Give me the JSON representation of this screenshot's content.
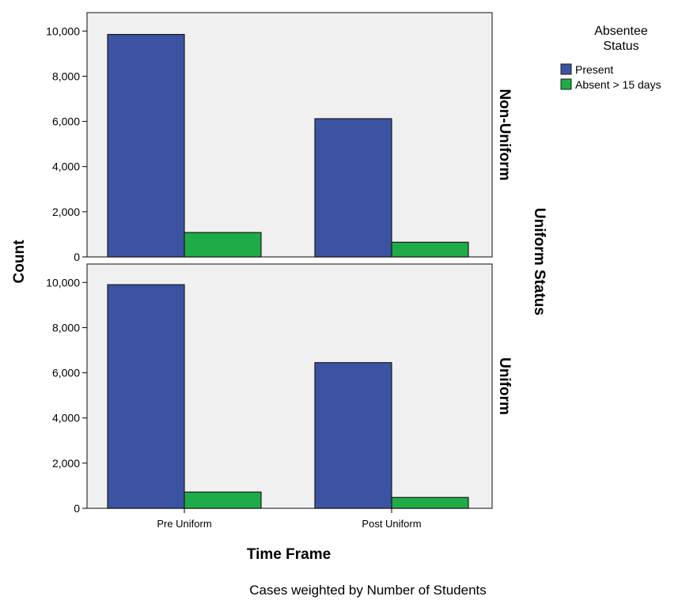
{
  "chart_data": {
    "type": "bar",
    "xlabel": "Time Frame",
    "ylabel": "Count",
    "facet_label": "Uniform Status",
    "categories": [
      "Pre Uniform",
      "Post Uniform"
    ],
    "ylim": [
      0,
      10500
    ],
    "yticks": [
      "0",
      "2,000",
      "4,000",
      "6,000",
      "8,000",
      "10,000"
    ],
    "legend": {
      "title_line1": "Absentee",
      "title_line2": "Status",
      "position": "top-right",
      "items": [
        {
          "name": "Present",
          "color": "#3c53a4"
        },
        {
          "name": "Absent > 15 days",
          "color": "#1fac48"
        }
      ]
    },
    "panels": [
      {
        "label": "Non-Uniform",
        "series": [
          {
            "name": "Present",
            "values": [
              9850,
              6120
            ]
          },
          {
            "name": "Absent > 15 days",
            "values": [
              1080,
              650
            ]
          }
        ]
      },
      {
        "label": "Uniform",
        "series": [
          {
            "name": "Present",
            "values": [
              9900,
              6450
            ]
          },
          {
            "name": "Absent > 15 days",
            "values": [
              720,
              480
            ]
          }
        ]
      }
    ],
    "grid": false,
    "panel_background": "#f0f0f0",
    "footnote": "Cases weighted by Number of Students"
  }
}
